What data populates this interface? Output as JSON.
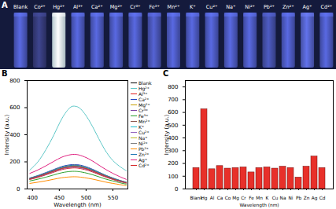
{
  "photo": {
    "title": "A",
    "labels": [
      "Blank",
      "Co²⁺",
      "Hg²⁺",
      "Al³⁺",
      "Ca²⁺",
      "Mg²⁺",
      "Cr³⁺",
      "Fe³⁺",
      "Mn²⁺",
      "K⁺",
      "Cu²⁺",
      "Na⁺",
      "Ni²⁺",
      "Pb²⁺",
      "Zn²⁺",
      "Ag⁺",
      "Cd²⁺"
    ],
    "colors": [
      "#4d5bc4",
      "#363c7c",
      "#dff6ff",
      "#4d5bc4",
      "#4d5bc4",
      "#4d5bc4",
      "#4d5bc4",
      "#4a56b8",
      "#4d5bc4",
      "#4d5bc4",
      "#4d5bc4",
      "#4d5bc4",
      "#4d5bc4",
      "#4450aa",
      "#4d5bc4",
      "#5563cc",
      "#4d5bc4"
    ]
  },
  "chart_data": [
    {
      "type": "line",
      "title": "B",
      "x_label": "Wavelength (nm)",
      "y_label": "Intensity (a.u.)",
      "x": [
        395,
        410,
        425,
        440,
        455,
        470,
        480,
        490,
        505,
        520,
        535,
        550,
        565,
        575
      ],
      "series": [
        {
          "name": "Blank",
          "color": "#000000",
          "values": [
            74,
            91,
            111,
            132,
            152,
            163,
            165,
            160,
            144,
            120,
            96,
            74,
            56,
            46
          ]
        },
        {
          "name": "Hg²⁺",
          "color": "#5fc8c8",
          "values": [
            140,
            200,
            290,
            400,
            520,
            600,
            610,
            590,
            510,
            400,
            290,
            210,
            160,
            135
          ]
        },
        {
          "name": "Al³⁺",
          "color": "#e41a1c",
          "values": [
            70,
            85,
            104,
            124,
            143,
            153,
            155,
            150,
            135,
            113,
            90,
            70,
            53,
            43
          ]
        },
        {
          "name": "Ca²⁺",
          "color": "#1f3fbf",
          "values": [
            81,
            99,
            121,
            144,
            166,
            178,
            180,
            175,
            157,
            131,
            104,
            81,
            61,
            50
          ]
        },
        {
          "name": "Mg²⁺",
          "color": "#c8a000",
          "values": [
            74,
            91,
            111,
            132,
            152,
            163,
            165,
            160,
            144,
            120,
            96,
            74,
            56,
            46
          ]
        },
        {
          "name": "Cr³⁺",
          "color": "#7b3fa0",
          "values": [
            77,
            94,
            114,
            136,
            156,
            168,
            170,
            165,
            148,
            124,
            99,
            77,
            58,
            48
          ]
        },
        {
          "name": "Fe³⁺",
          "color": "#2ca02c",
          "values": [
            59,
            72,
            87,
            104,
            120,
            129,
            130,
            126,
            113,
            95,
            75,
            59,
            44,
            36
          ]
        },
        {
          "name": "Mn²⁺",
          "color": "#8c564b",
          "values": [
            74,
            91,
            111,
            132,
            152,
            163,
            165,
            160,
            144,
            120,
            96,
            74,
            56,
            46
          ]
        },
        {
          "name": "K⁺",
          "color": "#17becf",
          "values": [
            77,
            94,
            114,
            136,
            156,
            168,
            170,
            165,
            148,
            124,
            99,
            77,
            58,
            48
          ]
        },
        {
          "name": "Cu²⁺",
          "color": "#9467bd",
          "values": [
            72,
            88,
            107,
            128,
            147,
            158,
            160,
            155,
            139,
            117,
            93,
            72,
            54,
            45
          ]
        },
        {
          "name": "Na⁺",
          "color": "#bcbd22",
          "values": [
            79,
            96,
            117,
            140,
            161,
            173,
            175,
            170,
            152,
            128,
            102,
            79,
            60,
            49
          ]
        },
        {
          "name": "Ni²⁺",
          "color": "#7f7f7f",
          "values": [
            74,
            91,
            111,
            132,
            152,
            163,
            165,
            160,
            144,
            120,
            96,
            74,
            56,
            46
          ]
        },
        {
          "name": "Pb²⁺",
          "color": "#ff8c00",
          "values": [
            41,
            50,
            60,
            72,
            83,
            89,
            90,
            87,
            78,
            66,
            52,
            41,
            31,
            25
          ]
        },
        {
          "name": "Zn²⁺",
          "color": "#1f77b4",
          "values": [
            79,
            96,
            117,
            140,
            161,
            173,
            175,
            170,
            152,
            128,
            102,
            79,
            60,
            49
          ]
        },
        {
          "name": "Ag⁺",
          "color": "#e0207f",
          "values": [
            115,
            140,
            171,
            204,
            235,
            252,
            255,
            247,
            222,
            186,
            148,
            115,
            87,
            71
          ]
        },
        {
          "name": "Cd²⁺",
          "color": "#d62728",
          "values": [
            74,
            91,
            111,
            132,
            152,
            163,
            165,
            160,
            144,
            120,
            96,
            74,
            56,
            46
          ]
        }
      ],
      "xlim": [
        390,
        578
      ],
      "xticks": [
        400,
        450,
        500,
        550
      ],
      "ylim": [
        0,
        800
      ],
      "yticks": [
        0,
        200,
        400,
        600,
        800
      ],
      "grid": false,
      "legend": "right"
    },
    {
      "type": "bar",
      "title": "C",
      "x_label": "Wavelength (nm)",
      "y_label": "Intensity (a.u.)",
      "categories": [
        "Blank",
        "Hg",
        "Al",
        "Ca",
        "Co",
        "Mg",
        "Cr",
        "Fe",
        "Mn",
        "K",
        "Cu",
        "Na",
        "Ni",
        "Pb",
        "Zn",
        "Ag",
        "Cd"
      ],
      "values": [
        165,
        625,
        155,
        180,
        160,
        165,
        170,
        130,
        165,
        170,
        160,
        175,
        165,
        90,
        175,
        255,
        165
      ],
      "color": "#e8302a",
      "ylim": [
        0,
        850
      ],
      "yticks": [
        0,
        100,
        200,
        300,
        400,
        500,
        600,
        700,
        800
      ],
      "grid": false
    }
  ]
}
